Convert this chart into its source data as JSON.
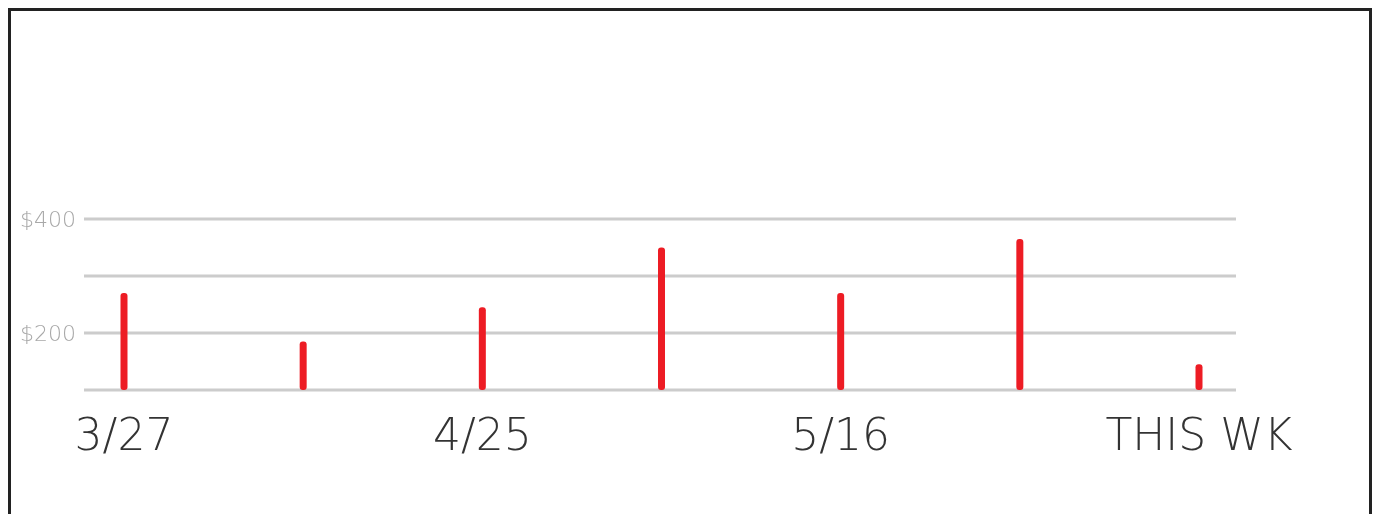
{
  "chart_data": {
    "type": "bar",
    "categories": [
      "3/27",
      null,
      "4/25",
      null,
      "5/16",
      null,
      "THIS WK"
    ],
    "values": [
      270,
      185,
      245,
      350,
      270,
      365,
      145
    ],
    "color": "#ed1c24",
    "ylim": [
      100,
      400
    ],
    "yticks": [
      {
        "value": 100,
        "label": null
      },
      {
        "value": 200,
        "label": "$200"
      },
      {
        "value": 300,
        "label": null
      },
      {
        "value": 400,
        "label": "$400"
      }
    ],
    "grid": "y"
  }
}
